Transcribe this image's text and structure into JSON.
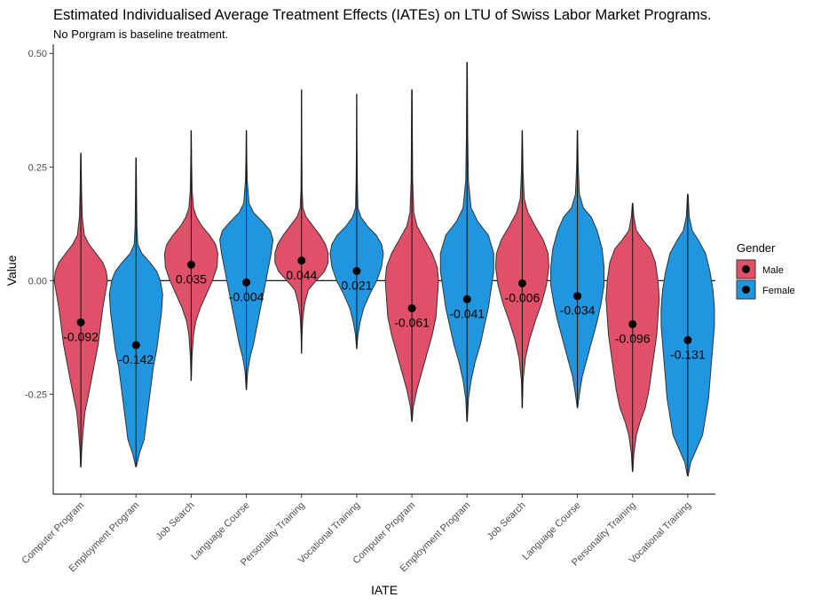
{
  "chart_data": {
    "type": "violin",
    "title": "Estimated Individualised Average Treatment Effects (IATEs) on LTU of Swiss Labor Market Programs.",
    "subtitle": "No Porgram is baseline treatment.",
    "xlabel": "IATE",
    "ylabel": "Value",
    "ylim": [
      -0.47,
      0.52
    ],
    "yticks": [
      -0.25,
      0.0,
      0.25,
      0.5
    ],
    "ytick_labels": [
      "-0.25",
      "0.00",
      "0.25",
      "0.50"
    ],
    "hline": 0.0,
    "grid": false,
    "legend": {
      "title": "Gender",
      "position": "right",
      "entries": [
        {
          "label": "Male",
          "color": "#E05068"
        },
        {
          "label": "Female",
          "color": "#2196E0"
        }
      ]
    },
    "series": [
      {
        "category": "Computer Program",
        "gender": "Male",
        "mean": -0.092,
        "label": "-0.092",
        "min": -0.41,
        "max": 0.28,
        "profile": [
          [
            -0.41,
            0.002
          ],
          [
            -0.37,
            0.008
          ],
          [
            -0.33,
            0.02
          ],
          [
            -0.29,
            0.035
          ],
          [
            -0.26,
            0.06
          ],
          [
            -0.22,
            0.09
          ],
          [
            -0.18,
            0.12
          ],
          [
            -0.14,
            0.15
          ],
          [
            -0.1,
            0.17
          ],
          [
            -0.06,
            0.19
          ],
          [
            -0.03,
            0.21
          ],
          [
            0.0,
            0.23
          ],
          [
            0.02,
            0.22
          ],
          [
            0.04,
            0.19
          ],
          [
            0.06,
            0.13
          ],
          [
            0.08,
            0.07
          ],
          [
            0.1,
            0.03
          ],
          [
            0.14,
            0.012
          ],
          [
            0.2,
            0.006
          ],
          [
            0.28,
            0.002
          ]
        ]
      },
      {
        "category": "Employment Program",
        "gender": "Female",
        "mean": -0.142,
        "label": "-0.142",
        "min": -0.41,
        "max": 0.27,
        "profile": [
          [
            -0.41,
            0.002
          ],
          [
            -0.38,
            0.03
          ],
          [
            -0.35,
            0.07
          ],
          [
            -0.31,
            0.09
          ],
          [
            -0.27,
            0.11
          ],
          [
            -0.23,
            0.13
          ],
          [
            -0.19,
            0.15
          ],
          [
            -0.15,
            0.18
          ],
          [
            -0.11,
            0.2
          ],
          [
            -0.07,
            0.22
          ],
          [
            -0.03,
            0.23
          ],
          [
            0.0,
            0.21
          ],
          [
            0.02,
            0.18
          ],
          [
            0.04,
            0.12
          ],
          [
            0.06,
            0.05
          ],
          [
            0.08,
            0.015
          ],
          [
            0.12,
            0.008
          ],
          [
            0.18,
            0.005
          ],
          [
            0.27,
            0.002
          ]
        ]
      },
      {
        "category": "Job Search",
        "gender": "Male",
        "mean": 0.035,
        "label": "0.035",
        "min": -0.22,
        "max": 0.33,
        "profile": [
          [
            -0.22,
            0.002
          ],
          [
            -0.17,
            0.01
          ],
          [
            -0.12,
            0.03
          ],
          [
            -0.09,
            0.06
          ],
          [
            -0.06,
            0.12
          ],
          [
            -0.03,
            0.2
          ],
          [
            0.0,
            0.28
          ],
          [
            0.03,
            0.34
          ],
          [
            0.06,
            0.35
          ],
          [
            0.08,
            0.32
          ],
          [
            0.1,
            0.24
          ],
          [
            0.12,
            0.14
          ],
          [
            0.14,
            0.07
          ],
          [
            0.16,
            0.03
          ],
          [
            0.2,
            0.012
          ],
          [
            0.26,
            0.006
          ],
          [
            0.33,
            0.002
          ]
        ]
      },
      {
        "category": "Language Course",
        "gender": "Female",
        "mean": -0.004,
        "label": "-0.004",
        "min": -0.24,
        "max": 0.33,
        "profile": [
          [
            -0.24,
            0.002
          ],
          [
            -0.2,
            0.015
          ],
          [
            -0.17,
            0.04
          ],
          [
            -0.14,
            0.08
          ],
          [
            -0.1,
            0.12
          ],
          [
            -0.06,
            0.16
          ],
          [
            -0.02,
            0.2
          ],
          [
            0.02,
            0.24
          ],
          [
            0.06,
            0.28
          ],
          [
            0.09,
            0.3
          ],
          [
            0.11,
            0.27
          ],
          [
            0.13,
            0.18
          ],
          [
            0.15,
            0.08
          ],
          [
            0.17,
            0.03
          ],
          [
            0.22,
            0.01
          ],
          [
            0.27,
            0.005
          ],
          [
            0.33,
            0.002
          ]
        ]
      },
      {
        "category": "Personality Training",
        "gender": "Male",
        "mean": 0.044,
        "label": "0.044",
        "min": -0.16,
        "max": 0.42,
        "profile": [
          [
            -0.16,
            0.002
          ],
          [
            -0.12,
            0.01
          ],
          [
            -0.08,
            0.03
          ],
          [
            -0.05,
            0.07
          ],
          [
            -0.02,
            0.15
          ],
          [
            0.0,
            0.32
          ],
          [
            0.02,
            0.5
          ],
          [
            0.04,
            0.58
          ],
          [
            0.06,
            0.58
          ],
          [
            0.08,
            0.52
          ],
          [
            0.1,
            0.4
          ],
          [
            0.12,
            0.25
          ],
          [
            0.14,
            0.1
          ],
          [
            0.16,
            0.03
          ],
          [
            0.2,
            0.012
          ],
          [
            0.3,
            0.006
          ],
          [
            0.42,
            0.002
          ]
        ]
      },
      {
        "category": "Vocational Training",
        "gender": "Female",
        "mean": 0.021,
        "label": "0.021",
        "min": -0.15,
        "max": 0.41,
        "profile": [
          [
            -0.15,
            0.002
          ],
          [
            -0.12,
            0.02
          ],
          [
            -0.09,
            0.06
          ],
          [
            -0.06,
            0.12
          ],
          [
            -0.03,
            0.22
          ],
          [
            0.0,
            0.34
          ],
          [
            0.03,
            0.42
          ],
          [
            0.06,
            0.45
          ],
          [
            0.08,
            0.42
          ],
          [
            0.1,
            0.33
          ],
          [
            0.12,
            0.18
          ],
          [
            0.14,
            0.07
          ],
          [
            0.16,
            0.02
          ],
          [
            0.22,
            0.01
          ],
          [
            0.3,
            0.005
          ],
          [
            0.41,
            0.002
          ]
        ]
      },
      {
        "category": "Computer Program",
        "gender": "Male",
        "mean": -0.061,
        "label": "-0.061",
        "min": -0.31,
        "max": 0.42,
        "profile": [
          [
            -0.31,
            0.002
          ],
          [
            -0.28,
            0.01
          ],
          [
            -0.24,
            0.04
          ],
          [
            -0.2,
            0.08
          ],
          [
            -0.16,
            0.12
          ],
          [
            -0.12,
            0.16
          ],
          [
            -0.08,
            0.19
          ],
          [
            -0.04,
            0.2
          ],
          [
            0.0,
            0.21
          ],
          [
            0.03,
            0.2
          ],
          [
            0.06,
            0.16
          ],
          [
            0.09,
            0.1
          ],
          [
            0.12,
            0.04
          ],
          [
            0.15,
            0.015
          ],
          [
            0.22,
            0.006
          ],
          [
            0.32,
            0.004
          ],
          [
            0.42,
            0.002
          ]
        ]
      },
      {
        "category": "Employment Program",
        "gender": "Female",
        "mean": -0.041,
        "label": "-0.041",
        "min": -0.31,
        "max": 0.48,
        "profile": [
          [
            -0.31,
            0.002
          ],
          [
            -0.26,
            0.01
          ],
          [
            -0.22,
            0.03
          ],
          [
            -0.18,
            0.06
          ],
          [
            -0.14,
            0.1
          ],
          [
            -0.1,
            0.13
          ],
          [
            -0.06,
            0.16
          ],
          [
            -0.02,
            0.18
          ],
          [
            0.02,
            0.2
          ],
          [
            0.06,
            0.2
          ],
          [
            0.1,
            0.16
          ],
          [
            0.13,
            0.08
          ],
          [
            0.16,
            0.03
          ],
          [
            0.22,
            0.01
          ],
          [
            0.32,
            0.005
          ],
          [
            0.48,
            0.002
          ]
        ]
      },
      {
        "category": "Job Search",
        "gender": "Male",
        "mean": -0.006,
        "label": "-0.006",
        "min": -0.28,
        "max": 0.33,
        "profile": [
          [
            -0.28,
            0.002
          ],
          [
            -0.22,
            0.01
          ],
          [
            -0.17,
            0.04
          ],
          [
            -0.13,
            0.09
          ],
          [
            -0.09,
            0.16
          ],
          [
            -0.05,
            0.24
          ],
          [
            -0.01,
            0.3
          ],
          [
            0.03,
            0.33
          ],
          [
            0.06,
            0.32
          ],
          [
            0.09,
            0.26
          ],
          [
            0.12,
            0.16
          ],
          [
            0.15,
            0.07
          ],
          [
            0.18,
            0.025
          ],
          [
            0.24,
            0.01
          ],
          [
            0.33,
            0.002
          ]
        ]
      },
      {
        "category": "Language Course",
        "gender": "Female",
        "mean": -0.034,
        "label": "-0.034",
        "min": -0.28,
        "max": 0.33,
        "profile": [
          [
            -0.28,
            0.002
          ],
          [
            -0.25,
            0.02
          ],
          [
            -0.21,
            0.05
          ],
          [
            -0.17,
            0.1
          ],
          [
            -0.13,
            0.15
          ],
          [
            -0.09,
            0.2
          ],
          [
            -0.05,
            0.24
          ],
          [
            -0.01,
            0.27
          ],
          [
            0.03,
            0.27
          ],
          [
            0.07,
            0.25
          ],
          [
            0.11,
            0.2
          ],
          [
            0.14,
            0.14
          ],
          [
            0.16,
            0.06
          ],
          [
            0.19,
            0.02
          ],
          [
            0.25,
            0.008
          ],
          [
            0.33,
            0.002
          ]
        ]
      },
      {
        "category": "Personality Training",
        "gender": "Male",
        "mean": -0.096,
        "label": "-0.096",
        "min": -0.42,
        "max": 0.17,
        "profile": [
          [
            -0.42,
            0.002
          ],
          [
            -0.38,
            0.01
          ],
          [
            -0.34,
            0.03
          ],
          [
            -0.31,
            0.06
          ],
          [
            -0.28,
            0.1
          ],
          [
            -0.24,
            0.13
          ],
          [
            -0.2,
            0.15
          ],
          [
            -0.16,
            0.17
          ],
          [
            -0.12,
            0.19
          ],
          [
            -0.08,
            0.2
          ],
          [
            -0.04,
            0.21
          ],
          [
            0.0,
            0.2
          ],
          [
            0.04,
            0.18
          ],
          [
            0.07,
            0.14
          ],
          [
            0.09,
            0.08
          ],
          [
            0.11,
            0.03
          ],
          [
            0.14,
            0.01
          ],
          [
            0.17,
            0.002
          ]
        ]
      },
      {
        "category": "Vocational Training",
        "gender": "Female",
        "mean": -0.131,
        "label": "-0.131",
        "min": -0.43,
        "max": 0.19,
        "profile": [
          [
            -0.43,
            0.002
          ],
          [
            -0.4,
            0.02
          ],
          [
            -0.37,
            0.06
          ],
          [
            -0.34,
            0.1
          ],
          [
            -0.3,
            0.12
          ],
          [
            -0.26,
            0.14
          ],
          [
            -0.22,
            0.15
          ],
          [
            -0.18,
            0.16
          ],
          [
            -0.14,
            0.17
          ],
          [
            -0.1,
            0.18
          ],
          [
            -0.06,
            0.18
          ],
          [
            -0.02,
            0.17
          ],
          [
            0.02,
            0.15
          ],
          [
            0.06,
            0.12
          ],
          [
            0.09,
            0.07
          ],
          [
            0.11,
            0.03
          ],
          [
            0.14,
            0.01
          ],
          [
            0.19,
            0.002
          ]
        ]
      }
    ]
  }
}
